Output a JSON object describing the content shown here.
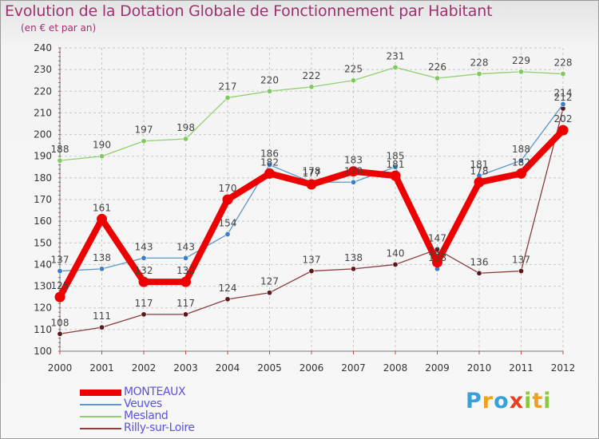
{
  "header": {
    "title": "Evolution de la Dotation Globale de Fonctionnement par Habitant",
    "subtitle": "(en € et par an)"
  },
  "logo": {
    "text": "Proxiti",
    "letters": [
      "P",
      "r",
      "o",
      "x",
      "i",
      "t",
      "i"
    ],
    "colors": [
      "#3aa0d8",
      "#f0a020",
      "#3aa0d8",
      "#e84020",
      "#8cc63f",
      "#f0a020",
      "#8cc63f"
    ]
  },
  "colors": {
    "title": "#a0306e",
    "legend_text": "#5a52e0",
    "grid": "#c8c8c8",
    "axis": "#777777"
  },
  "chart_data": {
    "type": "line",
    "title": "Evolution de la Dotation Globale de Fonctionnement par Habitant",
    "subtitle": "(en € et par an)",
    "xlabel": "",
    "ylabel": "",
    "ylim": [
      100,
      240
    ],
    "yticks": [
      100,
      110,
      120,
      130,
      140,
      150,
      160,
      170,
      180,
      190,
      200,
      210,
      220,
      230,
      240
    ],
    "categories": [
      "2000",
      "2001",
      "2002",
      "2003",
      "2004",
      "2005",
      "2006",
      "2007",
      "2008",
      "2009",
      "2010",
      "2011",
      "2012"
    ],
    "legend_position": "bottom-left",
    "series": [
      {
        "name": "MONTEAUX",
        "color": "#ee0000",
        "marker": "#ee0000",
        "width": 8,
        "values": [
          125,
          161,
          132,
          132,
          170,
          182,
          177,
          183,
          181,
          141,
          178,
          182,
          202
        ]
      },
      {
        "name": "Veuves",
        "color": "#5b97c9",
        "marker": "#3b7dc9",
        "width": 1.3,
        "values": [
          137,
          138,
          143,
          143,
          154,
          186,
          178,
          178,
          185,
          138,
          181,
          188,
          214
        ]
      },
      {
        "name": "Mesland",
        "color": "#90d070",
        "marker": "#80c860",
        "width": 1.3,
        "values": [
          188,
          190,
          197,
          198,
          217,
          220,
          222,
          225,
          231,
          226,
          228,
          229,
          228
        ]
      },
      {
        "name": "Rilly-sur-Loire",
        "color": "#8b3d3d",
        "marker": "#5a1818",
        "width": 1.3,
        "values": [
          108,
          111,
          117,
          117,
          124,
          127,
          137,
          138,
          140,
          147,
          136,
          137,
          212
        ]
      }
    ]
  }
}
